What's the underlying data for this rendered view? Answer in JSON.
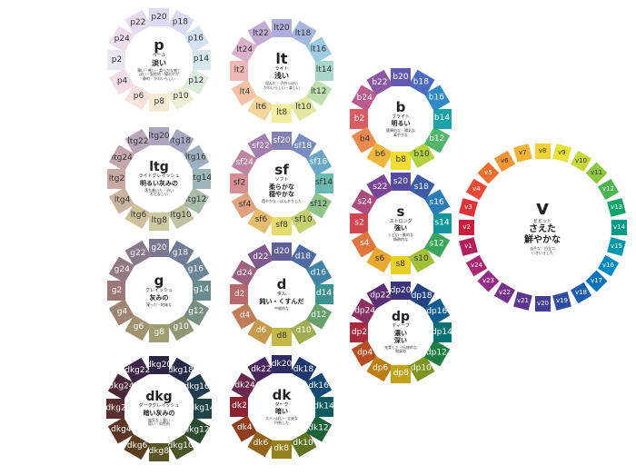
{
  "tones": [
    {
      "id": "p",
      "code": "p",
      "en": "ペール",
      "ja": [
        "淡い"
      ],
      "desc": [
        "薄い・軽い・柔らかな感じ",
        "淡い・女性的・優れやか",
        "静的・かわいらしい"
      ],
      "chips": [
        {
          "label": "p2",
          "color": "#ece6f0"
        },
        {
          "label": "p4",
          "color": "#f1dde6"
        },
        {
          "label": "p6",
          "color": "#f7e2de"
        },
        {
          "label": "p8",
          "color": "#f7ecd3"
        },
        {
          "label": "p10",
          "color": "#ecefd6"
        },
        {
          "label": "p12",
          "color": "#dcecdc"
        },
        {
          "label": "p14",
          "color": "#d6e7ee"
        },
        {
          "label": "p16",
          "color": "#d4e2f3"
        },
        {
          "label": "p18",
          "color": "#d8dcf0"
        },
        {
          "label": "p20",
          "color": "#dedaf0"
        },
        {
          "label": "p22",
          "color": "#e6dcee"
        },
        {
          "label": "p24",
          "color": "#eddcea"
        }
      ]
    },
    {
      "id": "lt",
      "code": "lt",
      "en": "ライト",
      "ja": [
        "浅い"
      ],
      "desc": [
        "澄んだ・子供っぽい",
        "かわいらしい・楽しい"
      ],
      "chips": [
        {
          "label": "lt2",
          "color": "#efb9b6"
        },
        {
          "label": "lt4",
          "color": "#f3c2a4"
        },
        {
          "label": "lt6",
          "color": "#f2d69b"
        },
        {
          "label": "lt8",
          "color": "#f3ed9e"
        },
        {
          "label": "lt10",
          "color": "#e3e8a3"
        },
        {
          "label": "lt12",
          "color": "#bfe0b0"
        },
        {
          "label": "lt14",
          "color": "#a9d7cc"
        },
        {
          "label": "lt16",
          "color": "#9ecbe1"
        },
        {
          "label": "lt18",
          "color": "#a5b5dc"
        },
        {
          "label": "lt20",
          "color": "#aeaedd"
        },
        {
          "label": "lt22",
          "color": "#c3acd4"
        },
        {
          "label": "lt24",
          "color": "#dcb0c9"
        }
      ]
    },
    {
      "id": "b",
      "code": "b",
      "en": "ブライト",
      "ja": [
        "明るい"
      ],
      "desc": [
        "健康的な・陽気な",
        "華やかな"
      ],
      "chips": [
        {
          "label": "b2",
          "color": "#db5b63"
        },
        {
          "label": "b4",
          "color": "#eb8a4e"
        },
        {
          "label": "b6",
          "color": "#f2b53c"
        },
        {
          "label": "b8",
          "color": "#f2dd32"
        },
        {
          "label": "b10",
          "color": "#b5d23e"
        },
        {
          "label": "b12",
          "color": "#52b56c"
        },
        {
          "label": "b14",
          "color": "#1ba3a8"
        },
        {
          "label": "b16",
          "color": "#2e89c6"
        },
        {
          "label": "b18",
          "color": "#4c6bbf"
        },
        {
          "label": "b20",
          "color": "#6459ad"
        },
        {
          "label": "b22",
          "color": "#8b56a5"
        },
        {
          "label": "b24",
          "color": "#bb5a8c"
        }
      ]
    },
    {
      "id": "ltg",
      "code": "ltg",
      "en": "ライトグレイッシュ",
      "ja": [
        "明るい灰みの"
      ],
      "desc": [
        "落ち着いた・渋い",
        "おとなしい"
      ],
      "chips": [
        {
          "label": "ltg2",
          "color": "#c8a9a4"
        },
        {
          "label": "ltg4",
          "color": "#cbb49f"
        },
        {
          "label": "ltg6",
          "color": "#cdc19d"
        },
        {
          "label": "ltg8",
          "color": "#cdc9a2"
        },
        {
          "label": "ltg10",
          "color": "#c0c3a2"
        },
        {
          "label": "ltg12",
          "color": "#a9bba9"
        },
        {
          "label": "ltg14",
          "color": "#9db6b8"
        },
        {
          "label": "ltg16",
          "color": "#9eafc1"
        },
        {
          "label": "ltg18",
          "color": "#a5a8c2"
        },
        {
          "label": "ltg20",
          "color": "#aca5bd"
        },
        {
          "label": "ltg22",
          "color": "#b9a6b8"
        },
        {
          "label": "ltg24",
          "color": "#c4a7ad"
        }
      ]
    },
    {
      "id": "sf",
      "code": "sf",
      "en": "ソフト",
      "ja": [
        "柔らかな",
        "穏やかな"
      ],
      "desc": [
        "穏やかな・ぼんやりした"
      ],
      "chips": [
        {
          "label": "sf2",
          "color": "#d68f92"
        },
        {
          "label": "sf4",
          "color": "#dfa17e"
        },
        {
          "label": "sf6",
          "color": "#e5bc6e"
        },
        {
          "label": "sf8",
          "color": "#e6dc6c"
        },
        {
          "label": "sf10",
          "color": "#c2d06e"
        },
        {
          "label": "sf12",
          "color": "#8fc48a"
        },
        {
          "label": "sf14",
          "color": "#6bb8ae"
        },
        {
          "label": "sf16",
          "color": "#6aa7c4"
        },
        {
          "label": "sf18",
          "color": "#778dc0"
        },
        {
          "label": "sf20",
          "color": "#8681b4"
        },
        {
          "label": "sf22",
          "color": "#a27fae"
        },
        {
          "label": "sf24",
          "color": "#bd859f"
        }
      ]
    },
    {
      "id": "s",
      "code": "s",
      "en": "ストロング",
      "ja": [
        "強い"
      ],
      "desc": [
        "くどい・動的な",
        "情熱的な"
      ],
      "chips": [
        {
          "label": "s2",
          "color": "#d2464f"
        },
        {
          "label": "s4",
          "color": "#e2763e"
        },
        {
          "label": "s6",
          "color": "#e8a82f"
        },
        {
          "label": "s8",
          "color": "#e8ce27"
        },
        {
          "label": "s10",
          "color": "#a2c137"
        },
        {
          "label": "s12",
          "color": "#3ba65b"
        },
        {
          "label": "s14",
          "color": "#14979b"
        },
        {
          "label": "s16",
          "color": "#2a7bb7"
        },
        {
          "label": "s18",
          "color": "#3c5ca8"
        },
        {
          "label": "s20",
          "color": "#564b9e"
        },
        {
          "label": "s22",
          "color": "#7b4697"
        },
        {
          "label": "s24",
          "color": "#ac4b7e"
        }
      ]
    },
    {
      "id": "g",
      "code": "g",
      "en": "グレイッシュ",
      "ja": [
        "灰みの"
      ],
      "desc": [
        "濁った・地味な"
      ],
      "chips": [
        {
          "label": "g2",
          "color": "#9b7875"
        },
        {
          "label": "g4",
          "color": "#9f8571"
        },
        {
          "label": "g6",
          "color": "#a29370"
        },
        {
          "label": "g8",
          "color": "#a29e74"
        },
        {
          "label": "g10",
          "color": "#919674"
        },
        {
          "label": "g12",
          "color": "#789080"
        },
        {
          "label": "g14",
          "color": "#6a8b8e"
        },
        {
          "label": "g16",
          "color": "#6d8498"
        },
        {
          "label": "g18",
          "color": "#737c96"
        },
        {
          "label": "g20",
          "color": "#7c7790"
        },
        {
          "label": "g22",
          "color": "#8a788c"
        },
        {
          "label": "g24",
          "color": "#967883"
        }
      ]
    },
    {
      "id": "d",
      "code": "d",
      "en": "ダル",
      "ja": [
        "鈍い・くすんだ"
      ],
      "desc": [
        "中間的な"
      ],
      "chips": [
        {
          "label": "d2",
          "color": "#b66a6c"
        },
        {
          "label": "d4",
          "color": "#c07b5a"
        },
        {
          "label": "d6",
          "color": "#c59a4b"
        },
        {
          "label": "d8",
          "color": "#c5b84b"
        },
        {
          "label": "d10",
          "color": "#9fad4f"
        },
        {
          "label": "d12",
          "color": "#67a06a"
        },
        {
          "label": "d14",
          "color": "#3e9391"
        },
        {
          "label": "d16",
          "color": "#3f82a5"
        },
        {
          "label": "d18",
          "color": "#5069a2"
        },
        {
          "label": "d20",
          "color": "#625c97"
        },
        {
          "label": "d22",
          "color": "#7e5a91"
        },
        {
          "label": "d24",
          "color": "#9d607f"
        }
      ]
    },
    {
      "id": "dp",
      "code": "dp",
      "en": "ディープ",
      "ja": [
        "濃い",
        "深い"
      ],
      "desc": [
        "充実した・伝統的な",
        "和風の"
      ],
      "chips": [
        {
          "label": "dp2",
          "color": "#a82a3d"
        },
        {
          "label": "dp4",
          "color": "#b64e24"
        },
        {
          "label": "dp6",
          "color": "#bd7d15"
        },
        {
          "label": "dp8",
          "color": "#bea316"
        },
        {
          "label": "dp10",
          "color": "#7d9621"
        },
        {
          "label": "dp12",
          "color": "#1e7e42"
        },
        {
          "label": "dp14",
          "color": "#037276"
        },
        {
          "label": "dp16",
          "color": "#145d8f"
        },
        {
          "label": "dp18",
          "color": "#234383"
        },
        {
          "label": "dp20",
          "color": "#3b3479"
        },
        {
          "label": "dp22",
          "color": "#5c2f75"
        },
        {
          "label": "dp24",
          "color": "#8a3161"
        }
      ]
    },
    {
      "id": "dkg",
      "code": "dkg",
      "en": "ダークグレイッシュ",
      "ja": [
        "暗い灰みの"
      ],
      "desc": [
        "陰気な・重い",
        "固い・男性的"
      ],
      "chips": [
        {
          "label": "dkg2",
          "color": "#5a2d2e"
        },
        {
          "label": "dkg4",
          "color": "#5b3526"
        },
        {
          "label": "dkg6",
          "color": "#5a4021"
        },
        {
          "label": "dkg8",
          "color": "#5b5425"
        },
        {
          "label": "dkg10",
          "color": "#4a5427"
        },
        {
          "label": "dkg12",
          "color": "#2b4a30"
        },
        {
          "label": "dkg14",
          "color": "#1f4447"
        },
        {
          "label": "dkg16",
          "color": "#213a50"
        },
        {
          "label": "dkg18",
          "color": "#262b4a"
        },
        {
          "label": "dkg20",
          "color": "#2d2544"
        },
        {
          "label": "dkg22",
          "color": "#3d2645"
        },
        {
          "label": "dkg24",
          "color": "#4d2838"
        }
      ]
    },
    {
      "id": "dk",
      "code": "dk",
      "en": "ダーク",
      "ja": [
        "暗い"
      ],
      "desc": [
        "大人っぽい・丈夫な",
        "円熟した"
      ],
      "chips": [
        {
          "label": "dk2",
          "color": "#8a2232"
        },
        {
          "label": "dk4",
          "color": "#8f3e22"
        },
        {
          "label": "dk6",
          "color": "#946319"
        },
        {
          "label": "dk8",
          "color": "#958019"
        },
        {
          "label": "dk10",
          "color": "#5f7525"
        },
        {
          "label": "dk12",
          "color": "#1d6138"
        },
        {
          "label": "dk14",
          "color": "#0b5a5e"
        },
        {
          "label": "dk16",
          "color": "#124a74"
        },
        {
          "label": "dk18",
          "color": "#1e386e"
        },
        {
          "label": "dk20",
          "color": "#2f2b63"
        },
        {
          "label": "dk22",
          "color": "#49275e"
        },
        {
          "label": "dk24",
          "color": "#6a284f"
        }
      ]
    }
  ],
  "vivid": {
    "code": "v",
    "en": "ビビット",
    "ja": [
      "さえた",
      "鮮やかな"
    ],
    "desc": [
      "派手な　目立つ",
      "いきいきした"
    ],
    "chips": [
      {
        "label": "v1",
        "color": "#b41e5a"
      },
      {
        "label": "v2",
        "color": "#cc1f3f"
      },
      {
        "label": "v3",
        "color": "#e13337"
      },
      {
        "label": "v4",
        "color": "#e84b33"
      },
      {
        "label": "v5",
        "color": "#ed6f2f"
      },
      {
        "label": "v6",
        "color": "#f19431"
      },
      {
        "label": "v7",
        "color": "#f3b335"
      },
      {
        "label": "v8",
        "color": "#f2d136"
      },
      {
        "label": "v9",
        "color": "#e8e238"
      },
      {
        "label": "v10",
        "color": "#c5d837"
      },
      {
        "label": "v11",
        "color": "#8dc440"
      },
      {
        "label": "v12",
        "color": "#4db452"
      },
      {
        "label": "v13",
        "color": "#13a469"
      },
      {
        "label": "v14",
        "color": "#009b88"
      },
      {
        "label": "v15",
        "color": "#0097a8"
      },
      {
        "label": "v16",
        "color": "#0088c2"
      },
      {
        "label": "v17",
        "color": "#0873bb"
      },
      {
        "label": "v18",
        "color": "#1e5eac"
      },
      {
        "label": "v19",
        "color": "#2f4c9f"
      },
      {
        "label": "v20",
        "color": "#423e96"
      },
      {
        "label": "v21",
        "color": "#5a368f"
      },
      {
        "label": "v22",
        "color": "#76318c"
      },
      {
        "label": "v23",
        "color": "#932c85"
      },
      {
        "label": "v24",
        "color": "#aa2672"
      }
    ]
  }
}
